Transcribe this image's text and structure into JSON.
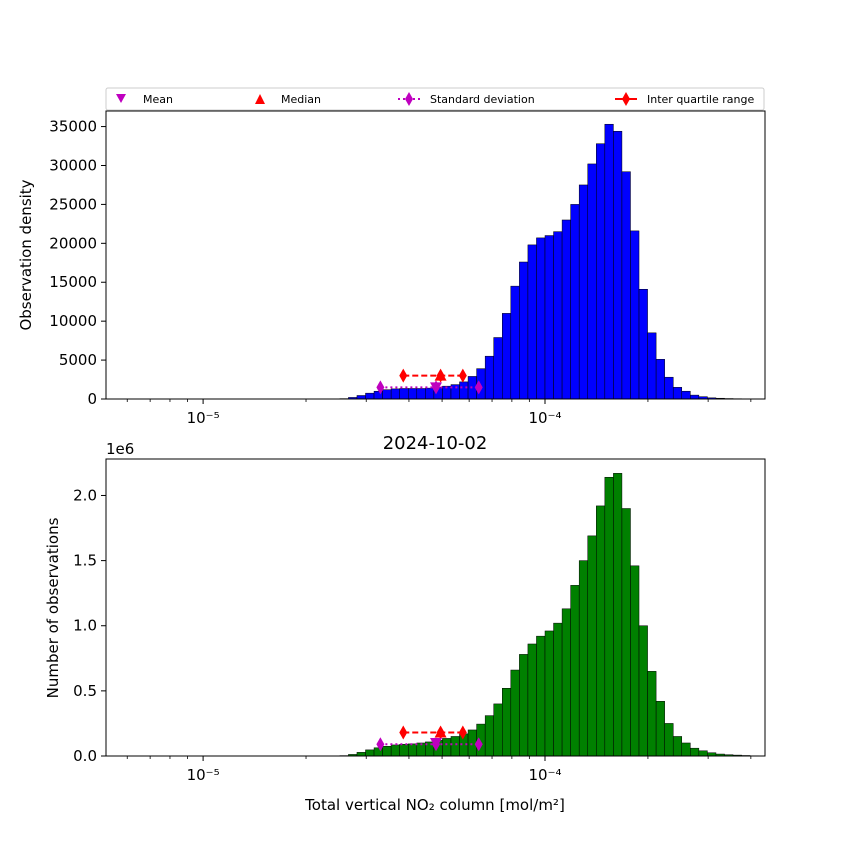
{
  "legend": [
    {
      "label": "Mean",
      "marker": "triangle-down",
      "color": "#bf00bf"
    },
    {
      "label": "Median",
      "marker": "triangle-up",
      "color": "#ff0000"
    },
    {
      "label": "Standard deviation",
      "marker": "thin-diamond",
      "color": "#bf00bf",
      "linestyle": "dotted"
    },
    {
      "label": "Inter quartile range",
      "marker": "thin-diamond",
      "color": "#ff0000",
      "linestyle": "solid"
    }
  ],
  "chart_data": [
    {
      "type": "bar",
      "title": "",
      "xlabel": "",
      "ylabel": "Observation density",
      "xscale": "log",
      "xlim": [
        5.2e-06,
        0.00044
      ],
      "ylim": [
        0,
        37000
      ],
      "xticks": [
        {
          "value": 1e-05,
          "label": "10⁻⁵"
        },
        {
          "value": 0.0001,
          "label": "10⁻⁴"
        }
      ],
      "yticks": [
        0,
        5000,
        10000,
        15000,
        20000,
        25000,
        30000,
        35000
      ],
      "bar_color": "#0000ff",
      "bin_edges_log10": {
        "start": -5.3,
        "step": 0.025,
        "count": 96
      },
      "values": [
        0,
        0,
        0,
        0,
        0,
        0,
        0,
        0,
        0,
        0,
        0,
        0,
        0,
        0,
        0,
        0,
        0,
        0,
        0,
        0,
        0,
        0,
        0,
        0,
        0,
        0,
        0,
        0,
        50,
        200,
        450,
        750,
        1000,
        1200,
        1300,
        1350,
        1350,
        1350,
        1400,
        1500,
        1650,
        1850,
        2200,
        2900,
        3900,
        5500,
        7900,
        11000,
        14500,
        17600,
        19800,
        20700,
        21000,
        21500,
        23000,
        25000,
        27500,
        30200,
        32800,
        35300,
        34400,
        29200,
        21600,
        14100,
        8500,
        5100,
        2800,
        1500,
        1000,
        500,
        300,
        150,
        100,
        60,
        40,
        20,
        10,
        0,
        0,
        0,
        0,
        0,
        0,
        0,
        0,
        0,
        0,
        0,
        0,
        0,
        0,
        0,
        0,
        0,
        0,
        0
      ],
      "stats": {
        "mean": {
          "x": 4.8e-05,
          "y": 1500
        },
        "median": {
          "x": 4.95e-05,
          "y": 3000
        },
        "std": {
          "x": [
            3.3e-05,
            6.4e-05
          ],
          "center": 4.8e-05,
          "y": 1500
        },
        "iqr": {
          "x": [
            3.85e-05,
            5.75e-05
          ],
          "center": 4.95e-05,
          "y": 3000
        }
      }
    },
    {
      "type": "bar",
      "title": "2024-10-02",
      "xlabel": "Total vertical NO₂ column [mol/m²]",
      "ylabel": "Number of observations",
      "offset_text": "1e6",
      "xscale": "log",
      "xlim": [
        5.2e-06,
        0.00044
      ],
      "ylim": [
        0,
        2.28
      ],
      "xticks": [
        {
          "value": 1e-05,
          "label": "10⁻⁵"
        },
        {
          "value": 0.0001,
          "label": "10⁻⁴"
        }
      ],
      "yticks": [
        {
          "value": 0,
          "label": "0.0"
        },
        {
          "value": 0.5,
          "label": "0.5"
        },
        {
          "value": 1.0,
          "label": "1.0"
        },
        {
          "value": 1.5,
          "label": "1.5"
        },
        {
          "value": 2.0,
          "label": "2.0"
        }
      ],
      "bar_color": "#008000",
      "bin_edges_log10": {
        "start": -5.3,
        "step": 0.025,
        "count": 96
      },
      "values": [
        0,
        0,
        0,
        0,
        0,
        0,
        0,
        0,
        0,
        0,
        0,
        0,
        0,
        0,
        0,
        0,
        0,
        0,
        0,
        0,
        0,
        0,
        0,
        0,
        0,
        0,
        0,
        0,
        0.003,
        0.012,
        0.028,
        0.047,
        0.063,
        0.075,
        0.085,
        0.09,
        0.093,
        0.1,
        0.108,
        0.12,
        0.135,
        0.15,
        0.17,
        0.2,
        0.245,
        0.31,
        0.4,
        0.52,
        0.66,
        0.78,
        0.86,
        0.92,
        0.96,
        1.02,
        1.13,
        1.31,
        1.5,
        1.69,
        1.92,
        2.14,
        2.17,
        1.9,
        1.46,
        1.0,
        0.65,
        0.42,
        0.25,
        0.15,
        0.1,
        0.06,
        0.04,
        0.025,
        0.015,
        0.01,
        0.007,
        0.004,
        0.002,
        0,
        0,
        0,
        0,
        0,
        0,
        0,
        0,
        0,
        0,
        0,
        0,
        0,
        0,
        0,
        0,
        0,
        0,
        0
      ],
      "stats": {
        "mean": {
          "x": 4.8e-05,
          "y": 0.1
        },
        "median": {
          "x": 4.95e-05,
          "y": 0.18
        },
        "std": {
          "x": [
            3.3e-05,
            6.4e-05
          ],
          "center": 4.8e-05,
          "y": 0.09
        },
        "iqr": {
          "x": [
            3.85e-05,
            5.75e-05
          ],
          "center": 4.95e-05,
          "y": 0.18
        }
      }
    }
  ]
}
